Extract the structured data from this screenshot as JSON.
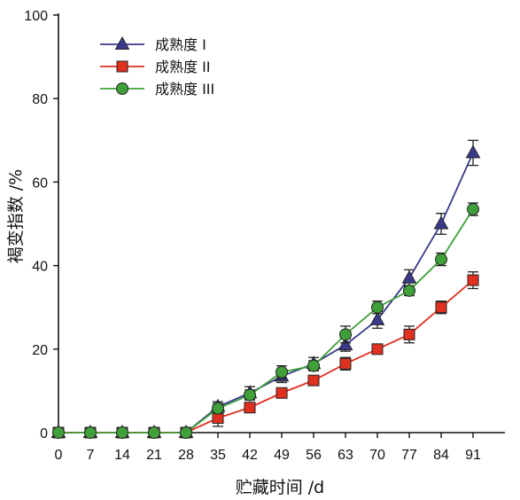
{
  "chart_data": {
    "type": "line",
    "title": "",
    "xlabel": "贮藏时间 /d",
    "ylabel": "褐变指数 /%",
    "x": [
      0,
      7,
      14,
      21,
      28,
      35,
      42,
      49,
      56,
      63,
      70,
      77,
      84,
      91
    ],
    "xlim": [
      0,
      98
    ],
    "ylim": [
      0,
      100
    ],
    "yticks": [
      0,
      20,
      40,
      60,
      80,
      100
    ],
    "grid": false,
    "legend_position": "top-left",
    "series": [
      {
        "name": "成熟度 I",
        "color": "#3a3a8c",
        "marker": "triangle",
        "values": [
          0,
          0,
          0,
          0,
          0,
          6.2,
          9.5,
          13.5,
          16.5,
          21,
          27,
          37,
          50,
          67
        ],
        "errors": [
          0,
          0,
          0,
          0,
          0,
          1.2,
          1.5,
          1.5,
          1.5,
          1.5,
          2,
          2,
          2.5,
          3
        ]
      },
      {
        "name": "成熟度 II",
        "color": "#e03020",
        "marker": "square",
        "values": [
          0,
          0,
          0,
          0,
          0,
          3.5,
          6,
          9.5,
          12.5,
          16.5,
          20,
          23.5,
          30,
          36.5
        ],
        "errors": [
          0,
          0,
          0,
          0,
          0,
          2,
          1,
          1,
          1,
          1.5,
          1,
          2,
          1.5,
          2
        ]
      },
      {
        "name": "成熟度 III",
        "color": "#3fa03a",
        "marker": "circle",
        "values": [
          0,
          0,
          0,
          0,
          0,
          5.8,
          9,
          14.5,
          16,
          23.5,
          30,
          34,
          41.5,
          53.5
        ],
        "errors": [
          0,
          0,
          0,
          0,
          0,
          1.2,
          1.2,
          1.5,
          1.2,
          2,
          1.5,
          1.2,
          1.5,
          1.5
        ]
      }
    ]
  }
}
